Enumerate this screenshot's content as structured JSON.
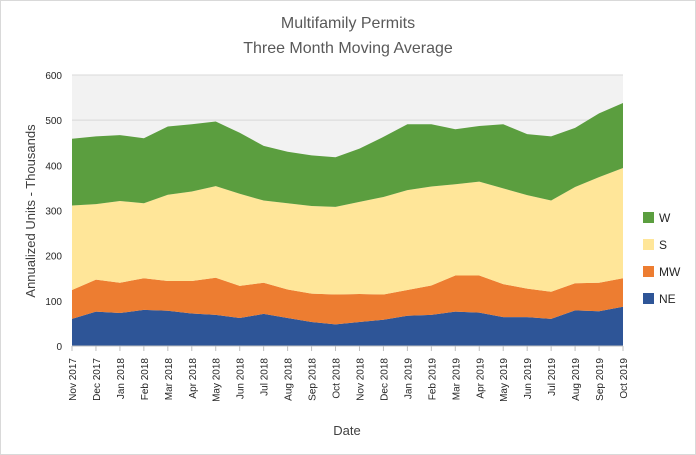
{
  "chart_data": {
    "type": "area",
    "stacked": true,
    "title_line1": "Multifamily Permits",
    "title_line2": "Three Month Moving Average",
    "xlabel": "Date",
    "ylabel": "Annualized Units - Thousands",
    "ylim": [
      0,
      600
    ],
    "yticks": [
      "0",
      "100",
      "200",
      "300",
      "400",
      "500",
      "600"
    ],
    "grid": "horizontal",
    "legend_position": "right",
    "categories": [
      "Nov 2017",
      "Dec 2017",
      "Jan 2018",
      "Feb 2018",
      "Mar 2018",
      "Apr 2018",
      "May 2018",
      "Jun 2018",
      "Jul 2018",
      "Aug 2018",
      "Sep 2018",
      "Oct 2018",
      "Nov 2018",
      "Dec 2018",
      "Jan 2019",
      "Feb 2019",
      "Mar 2019",
      "Apr 2019",
      "May 2019",
      "Jun 2019",
      "Jul 2019",
      "Aug 2019",
      "Sep 2019",
      "Oct 2019"
    ],
    "series": [
      {
        "name": "NE",
        "color": "#2e5597",
        "values": [
          60,
          76,
          73,
          80,
          78,
          72,
          69,
          62,
          71,
          62,
          53,
          48,
          53,
          58,
          67,
          69,
          76,
          74,
          64,
          64,
          60,
          79,
          77,
          87
        ]
      },
      {
        "name": "MW",
        "color": "#ed7d31",
        "values": [
          64,
          71,
          67,
          70,
          66,
          72,
          82,
          71,
          69,
          63,
          63,
          66,
          62,
          56,
          57,
          65,
          80,
          82,
          73,
          63,
          60,
          60,
          63,
          63
        ]
      },
      {
        "name": "S",
        "color": "#ffe699",
        "values": [
          187,
          167,
          181,
          166,
          191,
          198,
          203,
          204,
          182,
          191,
          194,
          194,
          204,
          216,
          221,
          219,
          202,
          208,
          212,
          207,
          202,
          213,
          234,
          244
        ]
      },
      {
        "name": "W",
        "color": "#5b9e3f",
        "values": [
          148,
          150,
          146,
          144,
          151,
          149,
          143,
          135,
          121,
          114,
          112,
          110,
          118,
          133,
          146,
          138,
          122,
          123,
          142,
          135,
          142,
          131,
          141,
          144
        ]
      }
    ]
  }
}
